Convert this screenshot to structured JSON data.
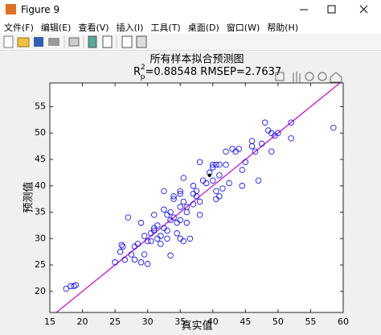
{
  "window": {
    "title": "Figure 9",
    "menu": [
      "文件(F)",
      "编辑(E)",
      "查看(V)",
      "插入(I)",
      "工具(T)",
      "桌面(D)",
      "窗口(W)",
      "帮助(H)"
    ]
  },
  "chart_data": {
    "type": "scatter",
    "title": "所有样本拟合预测图",
    "subtitle": {
      "base": "R",
      "sup": "2",
      "sub": "p",
      "text": "=0.88548  RMSEP=2.7637"
    },
    "x_label": "真实值",
    "y_label": "预测值",
    "xlim": [
      15,
      60
    ],
    "xticks": [
      15,
      20,
      25,
      30,
      35,
      40,
      45,
      50,
      55,
      60
    ],
    "ylim": [
      16,
      59.5
    ],
    "yticks": [
      20,
      25,
      30,
      35,
      40,
      45,
      50,
      55
    ],
    "marker_color": "#0000ff",
    "x": [
      17.5,
      18.2,
      18.7,
      19,
      25,
      25.8,
      26,
      26.2,
      26.5,
      27,
      27.5,
      28,
      28,
      28.5,
      29,
      29,
      29.5,
      29.5,
      30,
      30,
      30.5,
      30.5,
      31,
      31,
      31,
      31.5,
      31.5,
      32,
      32,
      32.5,
      32.5,
      32.5,
      33,
      33,
      33,
      33.5,
      33.5,
      33.5,
      34,
      34,
      34,
      34.5,
      34.5,
      35,
      35,
      35,
      35,
      35,
      35.5,
      35.5,
      35.5,
      36,
      36,
      36,
      36.5,
      37,
      37,
      37,
      37.5,
      37.5,
      38,
      38,
      38,
      38.5,
      39,
      39.5,
      40,
      40,
      40,
      40.5,
      40.5,
      40.5,
      41,
      41,
      41,
      41.5,
      42,
      42,
      42.5,
      43,
      43.5,
      44,
      44.5,
      44.5,
      45,
      46,
      46,
      46.5,
      47,
      47.5,
      48,
      48.5,
      49,
      49,
      49.5,
      50,
      52,
      52,
      58.5
    ],
    "values": [
      20.5,
      21,
      21,
      21.2,
      25.5,
      27.5,
      28.8,
      28.5,
      26,
      34,
      27,
      28.5,
      26,
      29,
      33,
      25.5,
      27,
      30.5,
      25.2,
      29.5,
      31,
      29.5,
      32,
      31.5,
      34.5,
      30,
      32.5,
      30.5,
      29,
      32,
      35.5,
      39,
      31.5,
      34.5,
      30,
      33.5,
      35,
      26.8,
      34,
      37.5,
      38,
      33,
      31,
      33.5,
      36,
      38.5,
      39,
      30,
      41.5,
      37,
      29.5,
      35,
      33,
      36,
      30,
      40,
      38.5,
      36.5,
      39,
      38,
      34.5,
      37,
      44.5,
      41,
      40.5,
      42.5,
      44,
      43.5,
      41,
      44,
      39,
      37.5,
      44,
      42,
      38,
      39.5,
      44,
      46.5,
      40.5,
      47,
      46.5,
      47,
      43,
      40,
      44.5,
      47.5,
      48.5,
      46.5,
      41,
      48,
      52,
      50.5,
      50,
      46.5,
      49.5,
      50,
      49,
      52,
      51
    ],
    "highlight_point": {
      "x": 39.5,
      "y": 42,
      "color": "#000000"
    },
    "reference_line": {
      "x": [
        15,
        60
      ],
      "values": [
        15,
        60
      ],
      "color": "#cc00cc"
    },
    "grid": false,
    "box": true
  }
}
